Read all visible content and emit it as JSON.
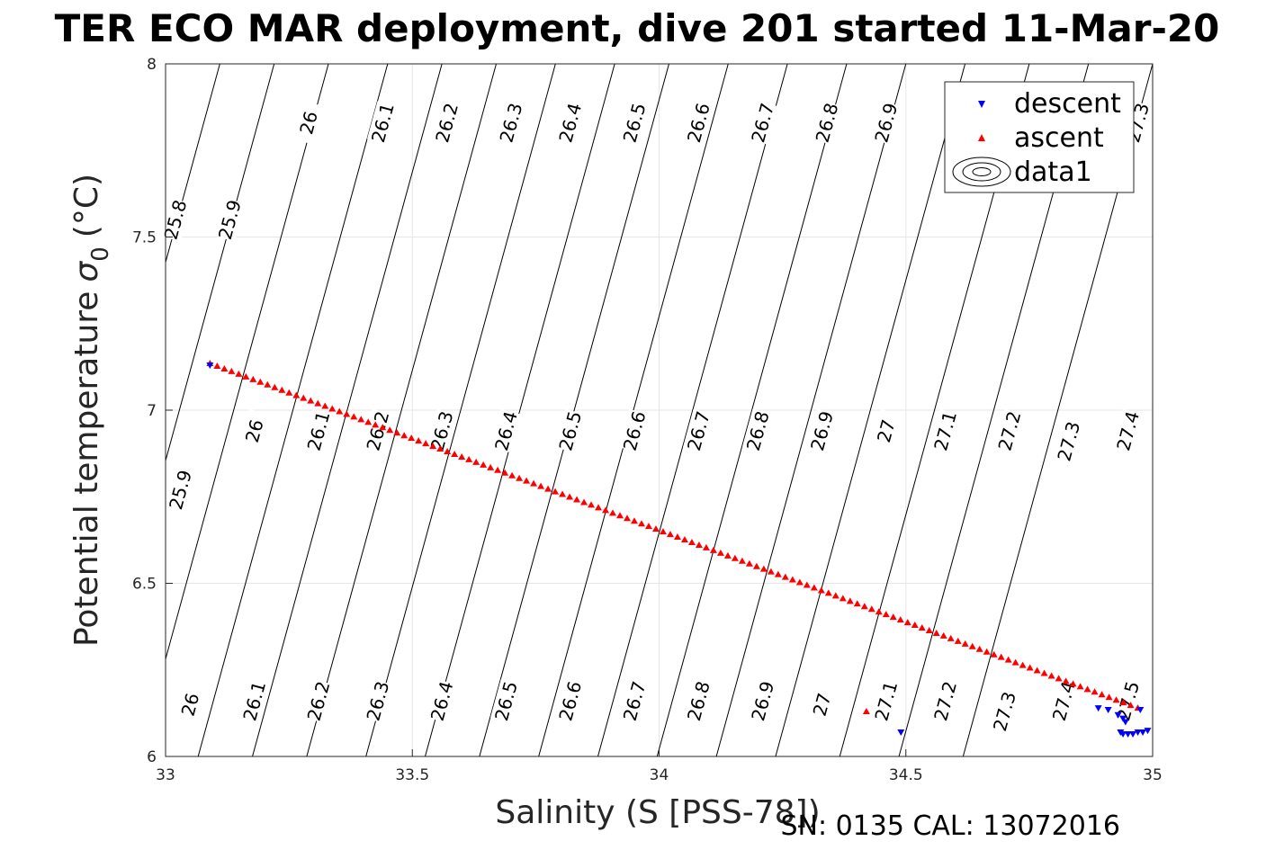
{
  "chart_data": {
    "type": "scatter",
    "title": "TER ECO MAR deployment, dive 201 started 11-Mar-20",
    "xlabel": "Salinity (S [PSS-78])",
    "ylabel": "Potential temperature",
    "ylabel_symbol": "σ",
    "ylabel_subscript": "0",
    "ylabel_unit": "(°C)",
    "xlim": [
      33,
      35
    ],
    "ylim": [
      6,
      8
    ],
    "xticks": [
      "33",
      "33.5",
      "34",
      "34.5",
      "35"
    ],
    "yticks": [
      "6",
      "6.5",
      "7",
      "7.5",
      "8"
    ],
    "grid": true,
    "legend_position": "top-right",
    "legend": [
      "descent",
      "ascent",
      "data1"
    ],
    "footer": "SN: 0135  CAL: 13072016",
    "colors": {
      "descent": "#0000ff",
      "ascent": "#ff0000",
      "contour": "#000000",
      "grid": "#e6e6e6"
    },
    "series": [
      {
        "name": "descent",
        "marker": "triangle-down",
        "points": [
          [
            33.09,
            7.13
          ],
          [
            34.49,
            6.07
          ],
          [
            34.89,
            6.14
          ],
          [
            34.91,
            6.135
          ],
          [
            34.93,
            6.12
          ],
          [
            34.94,
            6.11
          ],
          [
            34.945,
            6.1
          ],
          [
            34.935,
            6.07
          ],
          [
            34.94,
            6.065
          ],
          [
            34.95,
            6.065
          ],
          [
            34.96,
            6.065
          ],
          [
            34.97,
            6.07
          ],
          [
            34.98,
            6.07
          ],
          [
            34.99,
            6.075
          ],
          [
            34.975,
            6.135
          ]
        ]
      },
      {
        "name": "ascent",
        "marker": "triangle-up",
        "x_start": 33.09,
        "x_end": 34.97,
        "y_start": 7.135,
        "y_end": 6.14,
        "count": 130,
        "extra_points": [
          [
            34.42,
            6.13
          ]
        ]
      }
    ],
    "contours": [
      {
        "level": "25.8",
        "s_at_8": 33.0,
        "labels": [
          [
            33.02,
            7.55
          ]
        ]
      },
      {
        "level": "25.9",
        "s_at_8": 33.11,
        "labels": [
          [
            33.13,
            7.55
          ],
          [
            33.03,
            6.77
          ]
        ]
      },
      {
        "level": "26",
        "s_at_8": 33.22,
        "labels": [
          [
            33.29,
            7.83
          ],
          [
            33.18,
            6.94
          ],
          [
            33.05,
            6.15
          ]
        ]
      },
      {
        "level": "26.1",
        "s_at_8": 33.33,
        "labels": [
          [
            33.44,
            7.83
          ],
          [
            33.31,
            6.94
          ],
          [
            33.18,
            6.16
          ]
        ]
      },
      {
        "level": "26.2",
        "s_at_8": 33.45,
        "labels": [
          [
            33.57,
            7.83
          ],
          [
            33.43,
            6.94
          ],
          [
            33.31,
            6.16
          ]
        ]
      },
      {
        "level": "26.3",
        "s_at_8": 33.56,
        "labels": [
          [
            33.7,
            7.83
          ],
          [
            33.56,
            6.94
          ],
          [
            33.43,
            6.16
          ]
        ]
      },
      {
        "level": "26.4",
        "s_at_8": 33.67,
        "labels": [
          [
            33.82,
            7.83
          ],
          [
            33.69,
            6.94
          ],
          [
            33.56,
            6.16
          ]
        ]
      },
      {
        "level": "26.5",
        "s_at_8": 33.79,
        "labels": [
          [
            33.95,
            7.83
          ],
          [
            33.82,
            6.94
          ],
          [
            33.69,
            6.16
          ]
        ]
      },
      {
        "level": "26.6",
        "s_at_8": 33.91,
        "labels": [
          [
            34.08,
            7.83
          ],
          [
            33.95,
            6.94
          ],
          [
            33.82,
            6.16
          ]
        ]
      },
      {
        "level": "26.7",
        "s_at_8": 34.02,
        "labels": [
          [
            34.21,
            7.83
          ],
          [
            34.08,
            6.94
          ],
          [
            33.95,
            6.16
          ]
        ]
      },
      {
        "level": "26.8",
        "s_at_8": 34.14,
        "labels": [
          [
            34.34,
            7.83
          ],
          [
            34.2,
            6.94
          ],
          [
            34.08,
            6.16
          ]
        ]
      },
      {
        "level": "26.9",
        "s_at_8": 34.26,
        "labels": [
          [
            34.46,
            7.83
          ],
          [
            34.33,
            6.94
          ],
          [
            34.21,
            6.16
          ]
        ]
      },
      {
        "level": "27",
        "s_at_8": 34.38,
        "labels": [
          [
            34.46,
            6.94
          ],
          [
            34.33,
            6.15
          ]
        ]
      },
      {
        "level": "27.1",
        "s_at_8": 34.5,
        "labels": [
          [
            34.58,
            6.94
          ],
          [
            34.46,
            6.16
          ]
        ]
      },
      {
        "level": "27.2",
        "s_at_8": 34.62,
        "labels": [
          [
            34.71,
            6.94
          ],
          [
            34.58,
            6.16
          ]
        ]
      },
      {
        "level": "27.3",
        "s_at_8": 34.75,
        "labels": [
          [
            34.97,
            7.83
          ],
          [
            34.83,
            6.91
          ],
          [
            34.7,
            6.13
          ]
        ]
      },
      {
        "level": "27.4",
        "s_at_8": 34.87,
        "labels": [
          [
            34.95,
            6.94
          ],
          [
            34.82,
            6.16
          ]
        ]
      },
      {
        "level": "27.5",
        "s_at_8": 35.0,
        "labels": [
          [
            34.95,
            6.16
          ]
        ]
      }
    ]
  }
}
